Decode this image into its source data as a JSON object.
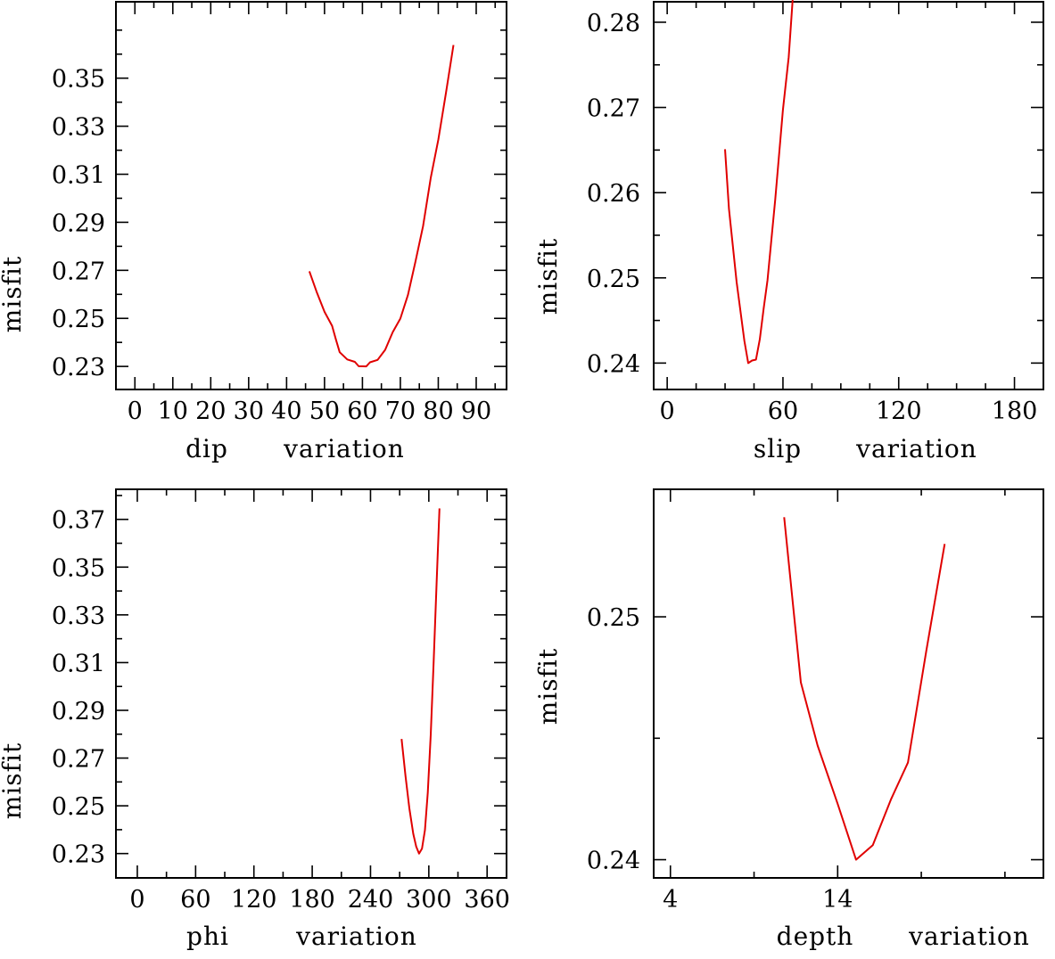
{
  "chart_data": [
    {
      "type": "line",
      "ylabel": "misfit",
      "xlabel_parts": [
        "dip",
        "variation"
      ],
      "xlim": [
        -5,
        98
      ],
      "ylim": [
        0.2204,
        0.3818
      ],
      "xticks": [
        0,
        10,
        20,
        30,
        40,
        50,
        60,
        70,
        80,
        90
      ],
      "xminor": [
        5,
        15,
        25,
        35,
        45,
        55,
        65,
        75,
        85,
        95
      ],
      "yticks": [
        0.23,
        0.25,
        0.27,
        0.29,
        0.31,
        0.33,
        0.35
      ],
      "yminor": [
        0.24,
        0.26,
        0.28,
        0.3,
        0.32,
        0.34,
        0.36,
        0.37
      ],
      "series": [
        {
          "name": "misfit",
          "color": "#e00000",
          "x": [
            46,
            48,
            50,
            52,
            53,
            54,
            56,
            58,
            59,
            61,
            62,
            64,
            66,
            68,
            70,
            72,
            74,
            76,
            78,
            80,
            82,
            84
          ],
          "y": [
            0.2696,
            0.2607,
            0.2527,
            0.2469,
            0.2413,
            0.2359,
            0.2329,
            0.2319,
            0.2301,
            0.23,
            0.2317,
            0.2327,
            0.2369,
            0.2443,
            0.2499,
            0.2597,
            0.2737,
            0.2884,
            0.3085,
            0.3244,
            0.3437,
            0.3638
          ]
        }
      ]
    },
    {
      "type": "line",
      "ylabel": "misfit",
      "xlabel_parts": [
        "slip",
        "variation"
      ],
      "xlim": [
        -7,
        195
      ],
      "ylim": [
        0.2369,
        0.2824
      ],
      "xticks": [
        0,
        60,
        120,
        180
      ],
      "xminor": [
        15,
        30,
        45,
        75,
        90,
        105,
        135,
        150,
        165
      ],
      "yticks": [
        0.24,
        0.25,
        0.26,
        0.27,
        0.28
      ],
      "yminor": [
        0.245,
        0.255,
        0.265,
        0.275
      ],
      "series": [
        {
          "name": "misfit",
          "color": "#e00000",
          "x": [
            30,
            32,
            36,
            40,
            42,
            44,
            46,
            48,
            50,
            52,
            56,
            60,
            63,
            65
          ],
          "y": [
            0.2651,
            0.2581,
            0.2495,
            0.2426,
            0.24,
            0.2403,
            0.2404,
            0.2428,
            0.2464,
            0.2497,
            0.2592,
            0.2697,
            0.2759,
            0.2826
          ]
        }
      ]
    },
    {
      "type": "line",
      "ylabel": "misfit",
      "xlabel_parts": [
        "phi",
        "variation"
      ],
      "xlim": [
        -22,
        380
      ],
      "ylim": [
        0.2198,
        0.3826
      ],
      "xticks": [
        0,
        60,
        120,
        180,
        240,
        300,
        360
      ],
      "xminor": [
        30,
        90,
        150,
        210,
        270,
        330
      ],
      "yticks": [
        0.23,
        0.25,
        0.27,
        0.29,
        0.31,
        0.33,
        0.35,
        0.37
      ],
      "yminor": [
        0.24,
        0.26,
        0.28,
        0.3,
        0.32,
        0.34,
        0.36,
        0.38
      ],
      "series": [
        {
          "name": "misfit",
          "color": "#e00000",
          "x": [
            272,
            276,
            280,
            284,
            287,
            290,
            293,
            296,
            299,
            302,
            305,
            308,
            311
          ],
          "y": [
            0.278,
            0.2625,
            0.249,
            0.2383,
            0.2329,
            0.23,
            0.2321,
            0.2398,
            0.2556,
            0.2798,
            0.3106,
            0.3435,
            0.3746
          ]
        }
      ]
    },
    {
      "type": "line",
      "ylabel": "misfit",
      "xlabel_parts": [
        "depth",
        "variation"
      ],
      "xlim": [
        3,
        26.3
      ],
      "ylim": [
        0.23925,
        0.25525
      ],
      "xticks": [
        4,
        14
      ],
      "xminor": [
        9,
        19,
        24
      ],
      "yticks": [
        0.24,
        0.25
      ],
      "yminor": [
        0.245
      ],
      "series": [
        {
          "name": "misfit",
          "color": "#e00000",
          "x": [
            10.8,
            11.8,
            12.8,
            14.0,
            15.1,
            16.1,
            17.2,
            18.2,
            19.3,
            20.4
          ],
          "y": [
            0.2541,
            0.2473,
            0.2447,
            0.2423,
            0.24,
            0.2406,
            0.2425,
            0.244,
            0.2486,
            0.253
          ]
        }
      ]
    }
  ]
}
